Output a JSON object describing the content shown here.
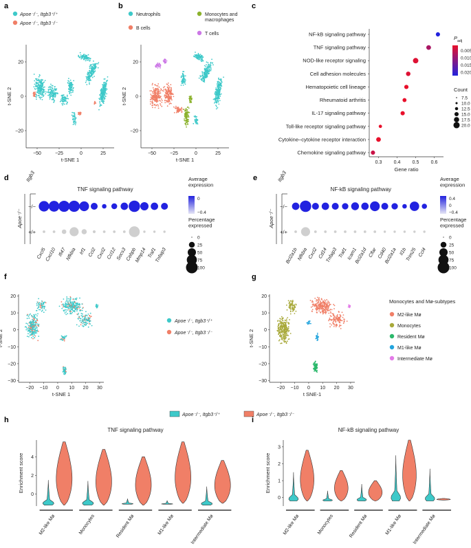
{
  "colors": {
    "ctrl": "#3ec9c9",
    "ko": "#f07f67",
    "neut": "#3ec9c9",
    "bcell": "#f07f67",
    "mono": "#8bb22c",
    "tcell": "#cc77e6",
    "m2": "#f07f67",
    "mono2": "#a8a93a",
    "resident": "#2bb86b",
    "m1": "#22a4dd",
    "inter": "#e37be8",
    "gray": "#cfcfcf",
    "blue": "#2222dd",
    "red": "#e8102b"
  },
  "panel_labels": {
    "a": "a",
    "b": "b",
    "c": "c",
    "d": "d",
    "e": "e",
    "f": "f",
    "g": "g",
    "h": "h",
    "i": "i"
  },
  "chart_data": [
    {
      "id": "a",
      "type": "scatter",
      "xlabel": "t-SNE 1",
      "ylabel": "t-SNE 2",
      "xticks": [
        "−50",
        "−25",
        "0",
        "25"
      ],
      "yticks": [
        "20",
        "0",
        "−20"
      ],
      "legend": [
        {
          "label": "Apoe⁻/⁻, Itgb3⁺/⁺",
          "color": "ctrl"
        },
        {
          "label": "Apoe⁻/⁻, Itgb3⁻/⁻",
          "color": "ko"
        }
      ]
    },
    {
      "id": "b",
      "type": "scatter",
      "xlabel": "t-SNE 1",
      "ylabel": "t-SNE 2",
      "xticks": [
        "−50",
        "−25",
        "0",
        "25"
      ],
      "yticks": [
        "20",
        "0",
        "−20"
      ],
      "legend": [
        {
          "label": "Neutrophils",
          "color": "neut"
        },
        {
          "label": "B cells",
          "color": "bcell"
        },
        {
          "label": "Monocytes and\nmacrophages",
          "color": "mono"
        },
        {
          "label": "T cells",
          "color": "tcell"
        }
      ]
    },
    {
      "id": "c",
      "type": "scatter",
      "title": "",
      "xlabel": "Gene ratio",
      "xticks": [
        "0.3",
        "0.4",
        "0.5",
        "0.6"
      ],
      "xlim": [
        0.25,
        0.65
      ],
      "pathways": [
        "NF-kB signaling pathway",
        "TNF signaling pathway",
        "NOD-like receptor signaling",
        "Cell adhesion molecules",
        "Hematopoietic cell lineage",
        "Rheumatoid arthritis",
        "IL-17 signaling pathway",
        "Toll-like receptor signaling pathway",
        "Cytokine–cytokine receptor interaction",
        "Chemokine signaling pathway"
      ],
      "gene_ratio": [
        0.62,
        0.57,
        0.5,
        0.46,
        0.45,
        0.44,
        0.43,
        0.31,
        0.3,
        0.27
      ],
      "count": [
        11,
        13,
        16,
        12,
        11,
        10,
        11,
        7,
        13,
        11
      ],
      "padj": [
        0.021,
        0.008,
        0.003,
        0.003,
        0.002,
        0.002,
        0.002,
        0.002,
        0.002,
        0.005
      ],
      "padj_legend_title": "P",
      "padj_legend_sub": "adj",
      "padj_ticks": [
        "0.005",
        "0.010",
        "0.015",
        "0.020"
      ],
      "count_legend_title": "Count",
      "count_ticks": [
        "7.5",
        "10.0",
        "12.5",
        "15.0",
        "17.5",
        "20.0"
      ]
    },
    {
      "id": "d",
      "type": "scatter",
      "title": "TNF signaling pathway",
      "genes": [
        "Cxcl5",
        "Cxcl10",
        "Ifi47",
        "Nfkbia",
        "Irf1",
        "Ccl2",
        "Cxcl2",
        "Ccl12",
        "Socs3",
        "Cebpb",
        "Mmp14",
        "Traf1",
        "Tnfaip3"
      ],
      "rows": [
        "−/−",
        "+/+"
      ],
      "row_group": "Itgb3",
      "col_group": "Apoe⁻/⁻",
      "pct_ko": [
        80,
        85,
        90,
        92,
        70,
        35,
        15,
        25,
        40,
        95,
        50,
        40,
        35
      ],
      "pct_wt": [
        5,
        5,
        15,
        60,
        20,
        6,
        5,
        5,
        5,
        85,
        4,
        4,
        4
      ],
      "expr_ko": [
        0.9,
        0.9,
        0.9,
        0.9,
        0.9,
        0.9,
        0.9,
        0.9,
        0.9,
        0.9,
        0.9,
        0.9,
        0.9
      ],
      "expr_wt": [
        -0.4,
        -0.4,
        -0.4,
        -0.4,
        -0.4,
        -0.4,
        -0.4,
        -0.4,
        -0.4,
        -0.4,
        -0.4,
        -0.4,
        -0.4
      ],
      "avg_title": "Average\nexpression",
      "avg_ticks": [
        "0",
        "−0.4"
      ],
      "pct_title": "Percentage\nexpressed",
      "pct_ticks": [
        "0",
        "25",
        "50",
        "75",
        "100"
      ]
    },
    {
      "id": "e",
      "type": "scatter",
      "title": "NF-kB signaling pathway",
      "genes": [
        "Bcl2a1b",
        "Nfkbia",
        "Cxcl2",
        "Cd14",
        "Tnfaip3",
        "Traf1",
        "Icam1",
        "Bcl2a1d",
        "Cflar",
        "Cd40",
        "Bcl2a1a",
        "Il1b",
        "Trim25",
        "Ccl4"
      ],
      "rows": [
        "−/−",
        "+/+"
      ],
      "row_group": "Itgb3",
      "col_group": "Apoe⁻/⁻",
      "pct_ko": [
        40,
        95,
        35,
        40,
        35,
        30,
        45,
        40,
        70,
        35,
        30,
        15,
        65,
        20
      ],
      "pct_wt": [
        5,
        60,
        5,
        5,
        5,
        5,
        5,
        5,
        5,
        4,
        4,
        4,
        4,
        4
      ],
      "expr_ko": [
        0.6,
        0.6,
        0.6,
        0.6,
        0.6,
        0.6,
        0.6,
        0.6,
        0.6,
        0.6,
        0.6,
        0.6,
        0.6,
        0.6
      ],
      "expr_wt": [
        -0.4,
        -0.4,
        -0.4,
        -0.4,
        -0.4,
        -0.4,
        -0.4,
        -0.4,
        -0.4,
        -0.4,
        -0.4,
        -0.4,
        -0.4,
        -0.4
      ],
      "avg_title": "Average\nexpression",
      "avg_ticks": [
        "0.4",
        "0",
        "−0.4"
      ],
      "pct_title": "Percentage\nexpressed",
      "pct_ticks": [
        "0",
        "25",
        "50",
        "75",
        "100"
      ]
    },
    {
      "id": "f",
      "type": "scatter",
      "xlabel": "t-SNE 1",
      "ylabel": "t-SNE 2",
      "xticks": [
        "−20",
        "−10",
        "0",
        "10",
        "20",
        "30"
      ],
      "yticks": [
        "20",
        "10",
        "0",
        "−10",
        "−20",
        "−30"
      ],
      "xlim": [
        -28,
        33
      ],
      "ylim": [
        -31,
        21
      ],
      "legend": [
        {
          "label": "Apoe⁻/⁻, Itgb3⁺/⁺",
          "color": "ctrl"
        },
        {
          "label": "Apoe⁻/⁻, Itgb3⁻/⁻",
          "color": "ko"
        }
      ]
    },
    {
      "id": "g",
      "type": "scatter",
      "xlabel": "t SNE-1",
      "ylabel": "t-SNE 2",
      "xticks": [
        "−20",
        "−10",
        "0",
        "10",
        "20",
        "30"
      ],
      "yticks": [
        "20",
        "10",
        "0",
        "−10",
        "−20",
        "−30"
      ],
      "xlim": [
        -28,
        33
      ],
      "ylim": [
        -31,
        21
      ],
      "legend_title": "Monocytes and Mø-subtypes",
      "legend": [
        {
          "label": "M2-like Mø",
          "color": "m2"
        },
        {
          "label": "Monocytes",
          "color": "mono2"
        },
        {
          "label": "Resident Mø",
          "color": "resident"
        },
        {
          "label": "M1-like Mø",
          "color": "m1"
        },
        {
          "label": "Intermediate Mø",
          "color": "inter"
        }
      ]
    },
    {
      "id": "h",
      "type": "violin",
      "title": "TNF signaling pathway",
      "ylabel": "Enrichment score",
      "yticks": [
        "4",
        "2",
        "0"
      ],
      "ylim": [
        -1.3,
        5.8
      ],
      "categories": [
        "M2-like Mø",
        "Monocytes",
        "Resident Mø",
        "M1-like Mø",
        "Intermediate Mø"
      ],
      "series": [
        {
          "name": "Apoe⁻/⁻, Itgb3⁺/⁺",
          "min": [
            -1.2,
            -1.2,
            -1.1,
            -1.1,
            -1.2
          ],
          "max": [
            1.5,
            1.4,
            -0.5,
            -0.7,
            0.8
          ]
        },
        {
          "name": "Apoe⁻/⁻, Itgb3⁻/⁻",
          "min": [
            -1.2,
            -1.2,
            -1.2,
            -1.0,
            -1.0
          ],
          "max": [
            5.6,
            4.8,
            4.0,
            5.6,
            3.6
          ]
        }
      ],
      "legend": [
        {
          "label": "Apoe⁻/⁻, Itgb3⁺/⁺",
          "color": "ctrl"
        },
        {
          "label": "Apoe⁻/⁻, Itgb3⁻/⁻",
          "color": "ko"
        }
      ]
    },
    {
      "id": "i",
      "type": "violin",
      "title": "NF-kB signaling pathway",
      "ylabel": "Enrichment score",
      "yticks": [
        "3",
        "2",
        "1",
        "0"
      ],
      "ylim": [
        -0.5,
        3.4
      ],
      "categories": [
        "M2-like Mø",
        "Monocytes",
        "Resident Mø",
        "M1-like Mø",
        "Intermediate Mø"
      ],
      "series": [
        {
          "name": "Apoe⁻/⁻, Itgb3⁺/⁺",
          "min": [
            -0.2,
            -0.2,
            -0.2,
            -0.2,
            -0.2
          ],
          "max": [
            1.5,
            0.4,
            0.8,
            2.5,
            1.7
          ]
        },
        {
          "name": "Apoe⁻/⁻, Itgb3⁻/⁻",
          "min": [
            -0.2,
            -0.2,
            -0.2,
            -0.2,
            -0.15
          ],
          "max": [
            2.8,
            1.6,
            1.0,
            3.4,
            -0.05
          ]
        }
      ]
    }
  ]
}
